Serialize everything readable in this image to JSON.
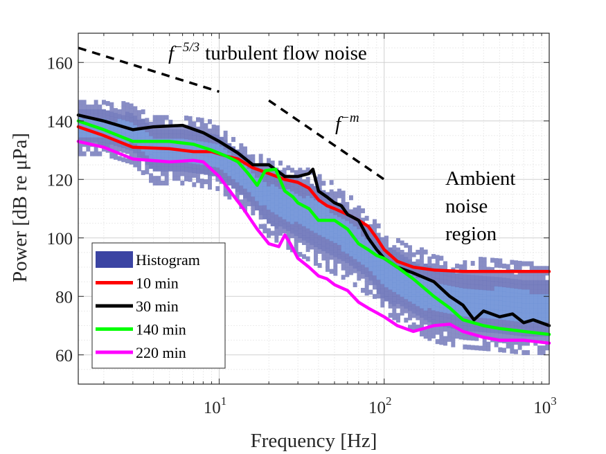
{
  "chart_data": {
    "type": "line",
    "xlabel": "Frequency [Hz]",
    "ylabel": "Power [dB re μPa]",
    "x_scale": "log",
    "xlim": [
      1.4,
      1000
    ],
    "ylim": [
      50,
      170
    ],
    "x_ticks": [
      {
        "value": 10,
        "base": "10",
        "exp": "1"
      },
      {
        "value": 100,
        "base": "10",
        "exp": "2"
      },
      {
        "value": 1000,
        "base": "10",
        "exp": "3"
      }
    ],
    "y_ticks": [
      60,
      80,
      100,
      120,
      140,
      160
    ],
    "grid": true,
    "legend_position": "bottom-left",
    "annotations": {
      "turbulent_base": "f",
      "turbulent_exp": "−5/3",
      "turbulent_text": "turbulent flow noise",
      "fm_base": "f",
      "fm_exp": "−m",
      "ambient_lines": [
        "Ambient",
        "noise",
        "region"
      ]
    },
    "reference_lines": [
      {
        "name": "f^-5/3",
        "x": [
          1.4,
          10
        ],
        "y": [
          165,
          150
        ],
        "color": "#000000"
      },
      {
        "name": "f^-m",
        "x": [
          20,
          100
        ],
        "y": [
          147,
          120
        ],
        "color": "#000000"
      }
    ],
    "histogram": {
      "name": "Histogram",
      "color": "#3b44a3",
      "x": [
        1.5,
        2,
        3,
        4,
        6,
        8,
        10,
        15,
        20,
        30,
        40,
        60,
        80,
        100,
        150,
        200,
        300,
        500,
        700,
        1000
      ],
      "y_low": [
        128,
        128,
        125,
        118,
        118,
        117,
        116,
        108,
        100,
        94,
        90,
        85,
        80,
        74,
        68,
        64,
        62,
        61,
        60,
        60
      ],
      "y_high": [
        147,
        146,
        145,
        141,
        141,
        140,
        138,
        130,
        126,
        124,
        122,
        114,
        108,
        101,
        96,
        94,
        92,
        92,
        91,
        90
      ]
    },
    "series": [
      {
        "name": "10 min",
        "color": "#ff0000",
        "x": [
          1.4,
          2,
          3,
          5,
          7,
          9,
          11,
          13,
          16,
          20,
          25,
          30,
          35,
          40,
          45,
          50,
          60,
          70,
          80,
          90,
          100,
          120,
          150,
          200,
          300,
          500,
          700,
          1000
        ],
        "y": [
          138,
          135,
          131,
          130.5,
          129.5,
          129.5,
          128,
          127,
          124,
          122,
          120,
          119,
          117,
          113,
          111,
          110,
          108,
          106,
          104,
          100,
          96,
          92,
          90,
          89,
          88.5,
          88.5,
          88.5,
          88.5
        ]
      },
      {
        "name": "30 min",
        "color": "#000000",
        "x": [
          1.4,
          2,
          3,
          4,
          6,
          8,
          10,
          13,
          16,
          20,
          25,
          30,
          35,
          37,
          40,
          45,
          50,
          55,
          60,
          70,
          80,
          90,
          100,
          120,
          150,
          200,
          250,
          300,
          350,
          400,
          500,
          600,
          700,
          800,
          1000
        ],
        "y": [
          142,
          140,
          137,
          138,
          138.5,
          136,
          133,
          129,
          125,
          125,
          121,
          121,
          122,
          123.5,
          116,
          114,
          112,
          111,
          108,
          106,
          100,
          96,
          93,
          90,
          88,
          85,
          80,
          77,
          72,
          75,
          73,
          74,
          71,
          72,
          70
        ]
      },
      {
        "name": "140 min",
        "color": "#00ff00",
        "x": [
          1.4,
          2,
          3,
          5,
          7,
          9,
          11,
          13,
          15,
          17,
          19,
          22,
          25,
          28,
          30,
          35,
          40,
          50,
          60,
          70,
          80,
          90,
          100,
          120,
          150,
          200,
          250,
          300,
          400,
          500,
          700,
          1000
        ],
        "y": [
          140,
          137,
          133,
          133,
          132,
          130,
          128,
          126,
          122,
          118,
          123,
          123.5,
          116,
          114,
          112,
          110,
          106,
          106,
          103,
          98,
          96,
          94,
          93,
          90,
          86,
          80,
          76,
          72,
          70,
          69,
          68,
          67
        ]
      },
      {
        "name": "220 min",
        "color": "#ff00ff",
        "x": [
          1.4,
          2,
          3,
          5,
          7,
          8,
          10,
          12,
          14,
          17,
          20,
          23,
          25,
          27,
          30,
          35,
          40,
          45,
          50,
          60,
          70,
          80,
          100,
          120,
          150,
          200,
          250,
          300,
          400,
          500,
          700,
          1000
        ],
        "y": [
          133,
          131,
          127,
          126,
          126.5,
          126,
          121,
          115,
          110,
          103,
          98,
          97,
          101,
          98,
          93,
          90,
          87,
          86,
          84,
          82,
          78,
          76,
          73,
          70,
          68,
          70,
          70.5,
          68,
          66,
          65,
          65,
          64
        ]
      }
    ]
  }
}
